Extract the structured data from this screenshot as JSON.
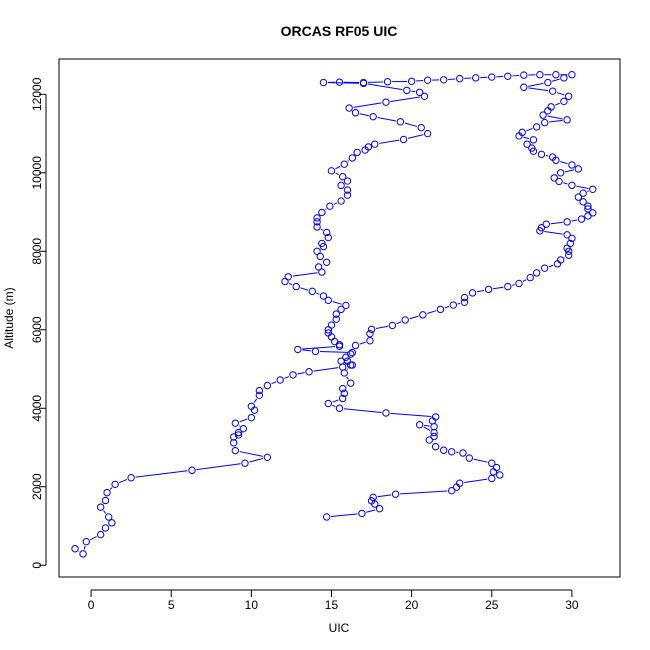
{
  "chart_data": {
    "type": "scatter",
    "title": "ORCAS RF05 UIC",
    "xlabel": "UIC",
    "ylabel": "Altitude (m)",
    "xlim": [
      -2,
      33
    ],
    "ylim": [
      -300,
      12900
    ],
    "xticks": [
      0,
      5,
      10,
      15,
      20,
      25,
      30
    ],
    "yticks": [
      0,
      2000,
      4000,
      6000,
      8000,
      10000,
      12000
    ],
    "grid": false,
    "style": "points connected by lines",
    "colors": {
      "series": "#0000ff",
      "axis": "#000000",
      "background": "#ffffff"
    },
    "series": [
      {
        "points": [
          [
            -1.0,
            420
          ],
          [
            -0.5,
            290
          ],
          [
            -0.3,
            600
          ],
          [
            0.6,
            780
          ],
          [
            0.9,
            950
          ],
          [
            1.3,
            1080
          ],
          [
            1.1,
            1230
          ],
          [
            0.6,
            1480
          ],
          [
            0.9,
            1650
          ],
          [
            1.0,
            1850
          ],
          [
            1.5,
            2060
          ],
          [
            2.5,
            2230
          ],
          [
            6.3,
            2420
          ],
          [
            9.6,
            2600
          ],
          [
            11.0,
            2750
          ],
          [
            9.0,
            2920
          ],
          [
            8.9,
            3120
          ],
          [
            8.9,
            3270
          ],
          [
            9.2,
            3320
          ],
          [
            9.2,
            3380
          ],
          [
            9.5,
            3480
          ],
          [
            9.0,
            3620
          ],
          [
            10.0,
            3760
          ],
          [
            10.2,
            3950
          ],
          [
            10.0,
            4050
          ],
          [
            10.5,
            4330
          ],
          [
            10.5,
            4450
          ],
          [
            11.0,
            4580
          ],
          [
            11.8,
            4720
          ],
          [
            12.6,
            4850
          ],
          [
            13.6,
            4930
          ],
          [
            15.7,
            5050
          ],
          [
            16.3,
            5100
          ],
          [
            15.6,
            5200
          ],
          [
            15.9,
            5300
          ],
          [
            16.3,
            5420
          ],
          [
            14.0,
            5450
          ],
          [
            12.9,
            5500
          ],
          [
            15.5,
            5580
          ],
          [
            15.5,
            5620
          ],
          [
            15.2,
            5700
          ],
          [
            15.0,
            5820
          ],
          [
            14.8,
            5920
          ],
          [
            14.8,
            6000
          ],
          [
            15.0,
            6120
          ],
          [
            15.3,
            6270
          ],
          [
            15.3,
            6400
          ],
          [
            15.6,
            6520
          ],
          [
            15.9,
            6620
          ],
          [
            14.8,
            6750
          ],
          [
            14.5,
            6860
          ],
          [
            13.8,
            6980
          ],
          [
            12.8,
            7100
          ],
          [
            12.1,
            7230
          ],
          [
            12.3,
            7350
          ],
          [
            14.4,
            7470
          ],
          [
            14.2,
            7600
          ],
          [
            14.7,
            7720
          ],
          [
            14.3,
            7870
          ],
          [
            14.1,
            8000
          ],
          [
            14.5,
            8120
          ],
          [
            14.4,
            8200
          ],
          [
            14.8,
            8350
          ],
          [
            14.7,
            8480
          ],
          [
            14.1,
            8620
          ],
          [
            14.1,
            8750
          ],
          [
            14.1,
            8850
          ],
          [
            14.4,
            8990
          ],
          [
            14.9,
            9150
          ],
          [
            15.6,
            9280
          ],
          [
            16.0,
            9430
          ],
          [
            16.0,
            9560
          ],
          [
            15.6,
            9680
          ],
          [
            16.0,
            9790
          ],
          [
            15.7,
            9900
          ],
          [
            15.0,
            10050
          ],
          [
            15.8,
            10220
          ],
          [
            16.3,
            10380
          ],
          [
            16.6,
            10520
          ],
          [
            17.1,
            10580
          ],
          [
            17.3,
            10660
          ],
          [
            17.7,
            10730
          ],
          [
            19.5,
            10850
          ],
          [
            21.0,
            11000
          ],
          [
            20.6,
            11150
          ],
          [
            19.3,
            11300
          ],
          [
            17.6,
            11430
          ],
          [
            16.5,
            11530
          ],
          [
            16.1,
            11650
          ],
          [
            18.4,
            11800
          ],
          [
            20.8,
            11950
          ],
          [
            20.5,
            12050
          ],
          [
            19.7,
            12100
          ],
          [
            17.0,
            12280
          ],
          [
            14.5,
            12300
          ],
          [
            15.5,
            12310
          ],
          [
            17.0,
            12300
          ],
          [
            18.5,
            12320
          ],
          [
            20.0,
            12330
          ],
          [
            21.0,
            12360
          ],
          [
            22.0,
            12370
          ],
          [
            23.0,
            12400
          ],
          [
            24.0,
            12420
          ],
          [
            25.0,
            12440
          ],
          [
            26.0,
            12460
          ],
          [
            27.0,
            12490
          ],
          [
            28.0,
            12500
          ],
          [
            29.0,
            12500
          ],
          [
            30.0,
            12500
          ],
          [
            29.5,
            12420
          ],
          [
            28.5,
            12300
          ],
          [
            27.0,
            12180
          ],
          [
            28.8,
            12080
          ],
          [
            29.8,
            11950
          ],
          [
            29.5,
            11820
          ],
          [
            28.7,
            11680
          ],
          [
            28.5,
            11580
          ],
          [
            28.2,
            11470
          ],
          [
            29.7,
            11350
          ],
          [
            28.3,
            11280
          ],
          [
            27.8,
            11170
          ],
          [
            26.9,
            11030
          ],
          [
            26.7,
            10940
          ],
          [
            27.6,
            10840
          ],
          [
            27.2,
            10730
          ],
          [
            27.5,
            10630
          ],
          [
            27.6,
            10550
          ],
          [
            28.1,
            10470
          ],
          [
            28.8,
            10400
          ],
          [
            29.0,
            10320
          ],
          [
            30.0,
            10200
          ],
          [
            30.4,
            10100
          ],
          [
            29.3,
            10000
          ],
          [
            28.9,
            9870
          ],
          [
            29.2,
            9780
          ],
          [
            30.0,
            9680
          ],
          [
            31.3,
            9580
          ],
          [
            30.7,
            9480
          ],
          [
            30.4,
            9380
          ],
          [
            30.7,
            9260
          ],
          [
            31.0,
            9150
          ],
          [
            31.0,
            9080
          ],
          [
            31.3,
            8980
          ],
          [
            31.0,
            8900
          ],
          [
            30.6,
            8820
          ],
          [
            29.7,
            8750
          ],
          [
            28.4,
            8690
          ],
          [
            28.1,
            8600
          ],
          [
            28.0,
            8520
          ],
          [
            29.7,
            8420
          ],
          [
            30.0,
            8330
          ],
          [
            29.9,
            8200
          ],
          [
            29.7,
            8080
          ],
          [
            29.8,
            8000
          ],
          [
            29.8,
            7900
          ],
          [
            29.3,
            7780
          ],
          [
            29.1,
            7680
          ],
          [
            28.3,
            7570
          ],
          [
            27.8,
            7450
          ],
          [
            27.4,
            7330
          ],
          [
            26.7,
            7180
          ],
          [
            26.0,
            7100
          ],
          [
            24.8,
            7030
          ],
          [
            23.8,
            6940
          ],
          [
            23.3,
            6820
          ],
          [
            23.3,
            6700
          ],
          [
            22.6,
            6630
          ],
          [
            21.8,
            6520
          ],
          [
            20.7,
            6380
          ],
          [
            19.6,
            6250
          ],
          [
            18.8,
            6110
          ],
          [
            17.5,
            6010
          ],
          [
            17.4,
            5900
          ],
          [
            17.4,
            5720
          ],
          [
            16.5,
            5600
          ],
          [
            16.2,
            5380
          ],
          [
            16.0,
            5200
          ],
          [
            16.2,
            5100
          ],
          [
            15.8,
            4900
          ],
          [
            16.2,
            4640
          ],
          [
            15.7,
            4500
          ],
          [
            15.8,
            4380
          ],
          [
            15.7,
            4250
          ],
          [
            14.8,
            4120
          ],
          [
            15.5,
            4000
          ],
          [
            18.4,
            3880
          ],
          [
            21.5,
            3780
          ],
          [
            21.3,
            3680
          ],
          [
            21.4,
            3530
          ],
          [
            20.5,
            3580
          ],
          [
            21.4,
            3380
          ],
          [
            21.4,
            3280
          ],
          [
            21.1,
            3190
          ],
          [
            21.5,
            3020
          ],
          [
            22.0,
            2930
          ],
          [
            22.5,
            2890
          ],
          [
            23.2,
            2860
          ],
          [
            23.6,
            2730
          ],
          [
            25.0,
            2600
          ],
          [
            25.3,
            2490
          ],
          [
            25.1,
            2380
          ],
          [
            25.5,
            2300
          ],
          [
            25.0,
            2210
          ],
          [
            23.0,
            2090
          ],
          [
            22.8,
            1990
          ],
          [
            22.5,
            1900
          ],
          [
            19.0,
            1810
          ],
          [
            17.6,
            1730
          ],
          [
            17.5,
            1640
          ],
          [
            17.7,
            1560
          ],
          [
            18.0,
            1440
          ],
          [
            16.9,
            1320
          ],
          [
            14.7,
            1230
          ]
        ]
      }
    ]
  }
}
